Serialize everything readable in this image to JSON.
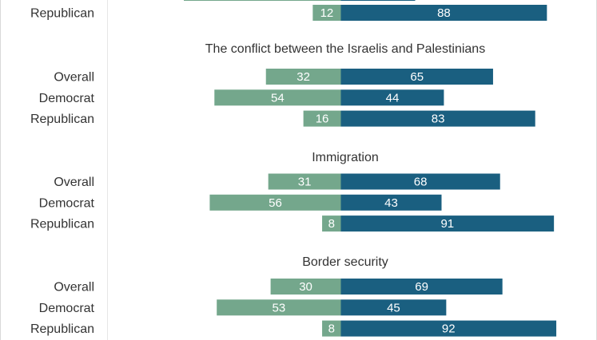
{
  "chart_data": {
    "type": "bar",
    "orientation": "horizontal-diverging",
    "colors": {
      "left": "#74a78c",
      "right": "#1a5f80"
    },
    "groups": [
      {
        "title": "",
        "rows": [
          {
            "label": "Republican",
            "left": 12,
            "right": 88
          }
        ]
      },
      {
        "title": "The conflict between the Israelis and Palestinians",
        "rows": [
          {
            "label": "Overall",
            "left": 32,
            "right": 65
          },
          {
            "label": "Democrat",
            "left": 54,
            "right": 44
          },
          {
            "label": "Republican",
            "left": 16,
            "right": 83
          }
        ]
      },
      {
        "title": "Immigration",
        "rows": [
          {
            "label": "Overall",
            "left": 31,
            "right": 68
          },
          {
            "label": "Democrat",
            "left": 56,
            "right": 43
          },
          {
            "label": "Republican",
            "left": 8,
            "right": 91
          }
        ]
      },
      {
        "title": "Border security",
        "rows": [
          {
            "label": "Overall",
            "left": 30,
            "right": 69
          },
          {
            "label": "Democrat",
            "left": 53,
            "right": 45
          },
          {
            "label": "Republican",
            "left": 8,
            "right": 92
          }
        ]
      }
    ]
  }
}
